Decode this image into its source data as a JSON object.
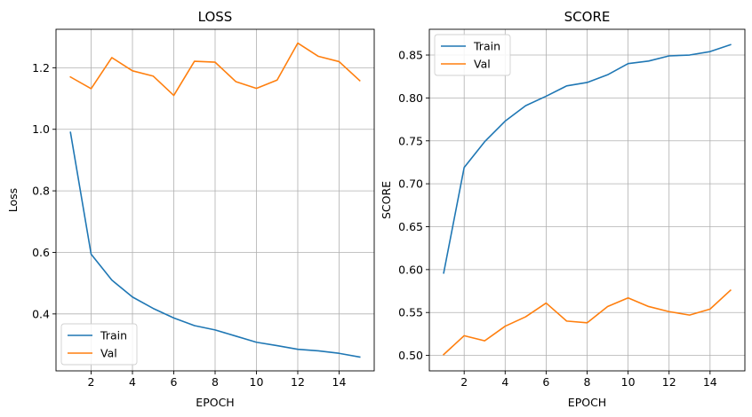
{
  "chart_data": [
    {
      "type": "line",
      "title": "LOSS",
      "xlabel": "EPOCH",
      "ylabel": "Loss",
      "x": [
        1,
        2,
        3,
        4,
        5,
        6,
        7,
        8,
        9,
        10,
        11,
        12,
        13,
        14,
        15
      ],
      "xticks": [
        2,
        4,
        6,
        8,
        10,
        12,
        14
      ],
      "xlim": [
        0.3,
        15.7
      ],
      "yticks": [
        0.4,
        0.6,
        0.8,
        1.0,
        1.2
      ],
      "ytick_labels": [
        "0.4",
        "0.6",
        "0.8",
        "1.0",
        "1.2"
      ],
      "ylim": [
        0.215,
        1.325
      ],
      "grid": true,
      "legend": "lower left",
      "series": [
        {
          "name": "Train",
          "color": "#1f77b4",
          "values": [
            0.99,
            0.594,
            0.51,
            0.455,
            0.418,
            0.387,
            0.362,
            0.348,
            0.328,
            0.308,
            0.297,
            0.285,
            0.28,
            0.272,
            0.26
          ]
        },
        {
          "name": "Val",
          "color": "#ff7f0e",
          "values": [
            1.17,
            1.132,
            1.233,
            1.19,
            1.173,
            1.11,
            1.221,
            1.218,
            1.155,
            1.133,
            1.16,
            1.28,
            1.237,
            1.22,
            1.158
          ]
        }
      ]
    },
    {
      "type": "line",
      "title": "SCORE",
      "xlabel": "EPOCH",
      "ylabel": "SCORE",
      "x": [
        1,
        2,
        3,
        4,
        5,
        6,
        7,
        8,
        9,
        10,
        11,
        12,
        13,
        14,
        15
      ],
      "xticks": [
        2,
        4,
        6,
        8,
        10,
        12,
        14
      ],
      "xlim": [
        0.3,
        15.7
      ],
      "yticks": [
        0.5,
        0.55,
        0.6,
        0.65,
        0.7,
        0.75,
        0.8,
        0.85
      ],
      "ytick_labels": [
        "0.50",
        "0.55",
        "0.60",
        "0.65",
        "0.70",
        "0.75",
        "0.80",
        "0.85"
      ],
      "ylim": [
        0.482,
        0.88
      ],
      "grid": true,
      "legend": "upper left",
      "series": [
        {
          "name": "Train",
          "color": "#1f77b4",
          "values": [
            0.596,
            0.719,
            0.749,
            0.773,
            0.791,
            0.802,
            0.814,
            0.818,
            0.827,
            0.84,
            0.843,
            0.849,
            0.85,
            0.854,
            0.862
          ]
        },
        {
          "name": "Val",
          "color": "#ff7f0e",
          "values": [
            0.501,
            0.523,
            0.517,
            0.534,
            0.545,
            0.561,
            0.54,
            0.538,
            0.557,
            0.567,
            0.557,
            0.551,
            0.547,
            0.554,
            0.576
          ]
        }
      ]
    }
  ]
}
